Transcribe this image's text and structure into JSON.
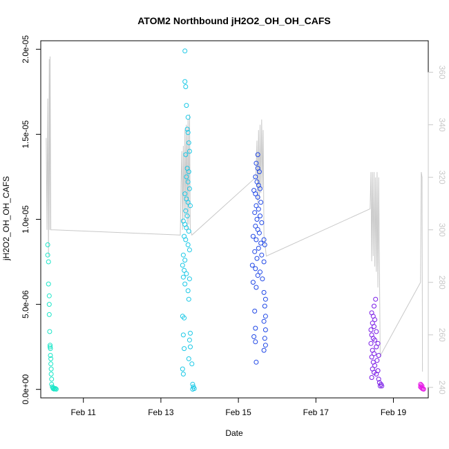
{
  "chart_data": {
    "type": "scatter",
    "title": "ATOM2 Northbound jH2O2_OH_OH_CAFS",
    "xlabel": "Date",
    "ylabel": "jH2O2_OH_OH_CAFS",
    "x_tick_labels": [
      "Feb 11",
      "Feb 13",
      "Feb 15",
      "Feb 17",
      "Feb 19"
    ],
    "x_tick_values_day": [
      11,
      13,
      15,
      17,
      19
    ],
    "xlim_day": [
      9.9,
      19.9
    ],
    "y_tick_labels": [
      "0.0e+00",
      "5.0e-06",
      "1.0e-05",
      "1.5e-05",
      "2.0e-05"
    ],
    "y_tick_values": [
      0,
      5e-06,
      1e-05,
      1.5e-05,
      2e-05
    ],
    "ylim": [
      -5e-07,
      2.05e-05
    ],
    "right_axis": {
      "tick_labels": [
        "240",
        "260",
        "280",
        "300",
        "320",
        "340",
        "360"
      ],
      "tick_values": [
        240,
        260,
        280,
        300,
        320,
        340,
        360
      ],
      "lim": [
        236,
        372
      ],
      "color": "#c8c8c8"
    },
    "grid": false,
    "colors": {
      "flight1": "#19e6c8",
      "flight2": "#19c8e6",
      "flight3": "#1e46e6",
      "flight4": "#7819e6",
      "flight5": "#e619e6",
      "line": "#c8c8c8"
    },
    "series": [
      {
        "color_key": "flight1",
        "points": [
          [
            10.08,
            8.5e-06
          ],
          [
            10.08,
            7.9e-06
          ],
          [
            10.1,
            7.5e-06
          ],
          [
            10.1,
            6.2e-06
          ],
          [
            10.12,
            5.5e-06
          ],
          [
            10.12,
            5e-06
          ],
          [
            10.12,
            4.4e-06
          ],
          [
            10.13,
            3.4e-06
          ],
          [
            10.14,
            2.6e-06
          ],
          [
            10.14,
            2.5e-06
          ],
          [
            10.15,
            2.4e-06
          ],
          [
            10.15,
            2e-06
          ],
          [
            10.16,
            1.8e-06
          ],
          [
            10.16,
            1.5e-06
          ],
          [
            10.17,
            1.2e-06
          ],
          [
            10.17,
            9e-07
          ],
          [
            10.18,
            6e-07
          ],
          [
            10.18,
            3e-07
          ],
          [
            10.2,
            1.5e-07
          ],
          [
            10.22,
            5e-08
          ],
          [
            10.24,
            2e-08
          ],
          [
            10.26,
            3e-08
          ],
          [
            10.3,
            1e-08
          ],
          [
            10.22,
            1e-07
          ],
          [
            10.28,
            5e-08
          ]
        ]
      },
      {
        "color_key": "flight2",
        "points": [
          [
            13.62,
            1.99e-05
          ],
          [
            13.62,
            1.81e-05
          ],
          [
            13.64,
            1.78e-05
          ],
          [
            13.66,
            1.67e-05
          ],
          [
            13.7,
            1.6e-05
          ],
          [
            13.68,
            1.53e-05
          ],
          [
            13.7,
            1.51e-05
          ],
          [
            13.72,
            1.45e-05
          ],
          [
            13.74,
            1.4e-05
          ],
          [
            13.64,
            1.38e-05
          ],
          [
            13.68,
            1.3e-05
          ],
          [
            13.72,
            1.28e-05
          ],
          [
            13.66,
            1.25e-05
          ],
          [
            13.7,
            1.22e-05
          ],
          [
            13.74,
            1.18e-05
          ],
          [
            13.62,
            1.15e-05
          ],
          [
            13.66,
            1.12e-05
          ],
          [
            13.7,
            1.1e-05
          ],
          [
            13.76,
            1.08e-05
          ],
          [
            13.64,
            1.05e-05
          ],
          [
            13.68,
            1.02e-05
          ],
          [
            13.58,
            9.9e-06
          ],
          [
            13.62,
            9.7e-06
          ],
          [
            13.66,
            9.5e-06
          ],
          [
            13.72,
            9.3e-06
          ],
          [
            13.6,
            9e-06
          ],
          [
            13.64,
            8.8e-06
          ],
          [
            13.7,
            8.5e-06
          ],
          [
            13.74,
            8.2e-06
          ],
          [
            13.58,
            7.9e-06
          ],
          [
            13.62,
            7.6e-06
          ],
          [
            13.56,
            7.3e-06
          ],
          [
            13.6,
            7e-06
          ],
          [
            13.66,
            6.8e-06
          ],
          [
            13.58,
            6.6e-06
          ],
          [
            13.74,
            6.5e-06
          ],
          [
            13.62,
            6.2e-06
          ],
          [
            13.7,
            5.8e-06
          ],
          [
            13.72,
            5.3e-06
          ],
          [
            13.56,
            4.3e-06
          ],
          [
            13.6,
            4.2e-06
          ],
          [
            13.76,
            3.3e-06
          ],
          [
            13.58,
            3.2e-06
          ],
          [
            13.74,
            2.9e-06
          ],
          [
            13.6,
            2.4e-06
          ],
          [
            13.76,
            2.5e-06
          ],
          [
            13.72,
            1.8e-06
          ],
          [
            13.56,
            1.2e-06
          ],
          [
            13.58,
            9e-07
          ],
          [
            13.8,
            1.5e-06
          ],
          [
            13.82,
            3e-07
          ],
          [
            13.84,
            1.5e-07
          ],
          [
            13.86,
            5e-08
          ],
          [
            13.82,
            1e-08
          ]
        ]
      },
      {
        "color_key": "flight3",
        "points": [
          [
            15.5,
            1.38e-05
          ],
          [
            15.46,
            1.33e-05
          ],
          [
            15.5,
            1.3e-05
          ],
          [
            15.54,
            1.28e-05
          ],
          [
            15.44,
            1.25e-05
          ],
          [
            15.48,
            1.22e-05
          ],
          [
            15.52,
            1.2e-05
          ],
          [
            15.56,
            1.18e-05
          ],
          [
            15.4,
            1.17e-05
          ],
          [
            15.44,
            1.15e-05
          ],
          [
            15.5,
            1.13e-05
          ],
          [
            15.58,
            1.1e-05
          ],
          [
            15.46,
            1.08e-05
          ],
          [
            15.52,
            1.06e-05
          ],
          [
            15.42,
            1.04e-05
          ],
          [
            15.56,
            1.02e-05
          ],
          [
            15.48,
            1e-05
          ],
          [
            15.6,
            9.8e-06
          ],
          [
            15.44,
            9.6e-06
          ],
          [
            15.5,
            9.4e-06
          ],
          [
            15.54,
            9.2e-06
          ],
          [
            15.38,
            9e-06
          ],
          [
            15.46,
            8.8e-06
          ],
          [
            15.58,
            8.6e-06
          ],
          [
            15.66,
            8.8e-06
          ],
          [
            15.68,
            8.5e-06
          ],
          [
            15.52,
            8.3e-06
          ],
          [
            15.42,
            8.1e-06
          ],
          [
            15.6,
            7.9e-06
          ],
          [
            15.48,
            7.7e-06
          ],
          [
            15.66,
            7.5e-06
          ],
          [
            15.36,
            7.3e-06
          ],
          [
            15.44,
            7.1e-06
          ],
          [
            15.56,
            6.9e-06
          ],
          [
            15.5,
            6.7e-06
          ],
          [
            15.62,
            6.5e-06
          ],
          [
            15.38,
            6.3e-06
          ],
          [
            15.46,
            6e-06
          ],
          [
            15.66,
            5.7e-06
          ],
          [
            15.7,
            5.3e-06
          ],
          [
            15.68,
            4.9e-06
          ],
          [
            15.42,
            4.6e-06
          ],
          [
            15.7,
            4.3e-06
          ],
          [
            15.66,
            4e-06
          ],
          [
            15.44,
            3.6e-06
          ],
          [
            15.7,
            3.5e-06
          ],
          [
            15.4,
            3.1e-06
          ],
          [
            15.68,
            3e-06
          ],
          [
            15.44,
            2.8e-06
          ],
          [
            15.7,
            2.6e-06
          ],
          [
            15.66,
            2.3e-06
          ],
          [
            15.46,
            1.6e-06
          ]
        ]
      },
      {
        "color_key": "flight4",
        "points": [
          [
            18.54,
            5.3e-06
          ],
          [
            18.5,
            4.9e-06
          ],
          [
            18.44,
            4.5e-06
          ],
          [
            18.48,
            4.3e-06
          ],
          [
            18.52,
            4.1e-06
          ],
          [
            18.46,
            3.9e-06
          ],
          [
            18.5,
            3.7e-06
          ],
          [
            18.42,
            3.5e-06
          ],
          [
            18.56,
            3.4e-06
          ],
          [
            18.44,
            3.2e-06
          ],
          [
            18.48,
            3e-06
          ],
          [
            18.52,
            2.9e-06
          ],
          [
            18.42,
            2.7e-06
          ],
          [
            18.56,
            2.5e-06
          ],
          [
            18.6,
            2.7e-06
          ],
          [
            18.46,
            2.3e-06
          ],
          [
            18.5,
            2.1e-06
          ],
          [
            18.62,
            2e-06
          ],
          [
            18.44,
            1.9e-06
          ],
          [
            18.58,
            1.7e-06
          ],
          [
            18.48,
            1.6e-06
          ],
          [
            18.52,
            1.4e-06
          ],
          [
            18.46,
            1.2e-06
          ],
          [
            18.6,
            1.1e-06
          ],
          [
            18.5,
            1e-06
          ],
          [
            18.56,
            9e-07
          ],
          [
            18.44,
            7e-07
          ],
          [
            18.62,
            6e-07
          ],
          [
            18.64,
            4e-07
          ],
          [
            18.68,
            3e-07
          ],
          [
            18.66,
            2e-07
          ],
          [
            18.7,
            2e-07
          ]
        ]
      },
      {
        "color_key": "flight5",
        "points": [
          [
            19.7,
            3e-07
          ],
          [
            19.72,
            2.5e-07
          ],
          [
            19.74,
            2e-07
          ],
          [
            19.7,
            1.5e-07
          ],
          [
            19.72,
            1e-07
          ],
          [
            19.74,
            6e-08
          ],
          [
            19.76,
            3e-08
          ],
          [
            19.78,
            1e-08
          ]
        ]
      }
    ],
    "right_axis_line": [
      [
        10.04,
        335
      ],
      [
        10.06,
        300
      ],
      [
        10.08,
        350
      ],
      [
        10.1,
        290
      ],
      [
        10.12,
        365
      ],
      [
        10.13,
        300
      ],
      [
        10.14,
        366
      ],
      [
        10.16,
        300
      ],
      [
        10.2,
        300
      ],
      [
        10.25,
        300
      ],
      [
        13.5,
        298
      ],
      [
        13.52,
        318
      ],
      [
        13.54,
        330
      ],
      [
        13.56,
        300
      ],
      [
        13.58,
        332
      ],
      [
        13.6,
        304
      ],
      [
        13.62,
        338
      ],
      [
        13.64,
        306
      ],
      [
        13.66,
        340
      ],
      [
        13.68,
        300
      ],
      [
        13.7,
        342
      ],
      [
        13.72,
        302
      ],
      [
        13.74,
        344
      ],
      [
        13.76,
        300
      ],
      [
        13.8,
        298
      ],
      [
        15.45,
        320
      ],
      [
        15.48,
        334
      ],
      [
        15.5,
        310
      ],
      [
        15.52,
        338
      ],
      [
        15.54,
        312
      ],
      [
        15.56,
        340
      ],
      [
        15.58,
        314
      ],
      [
        15.6,
        342
      ],
      [
        15.62,
        316
      ],
      [
        15.64,
        338
      ],
      [
        15.66,
        298
      ],
      [
        15.72,
        290
      ],
      [
        18.4,
        308
      ],
      [
        18.42,
        322
      ],
      [
        18.44,
        288
      ],
      [
        18.46,
        322
      ],
      [
        18.48,
        290
      ],
      [
        18.5,
        322
      ],
      [
        18.52,
        286
      ],
      [
        18.54,
        320
      ],
      [
        18.56,
        284
      ],
      [
        18.58,
        322
      ],
      [
        18.6,
        278
      ],
      [
        18.62,
        320
      ],
      [
        18.66,
        252
      ],
      [
        19.7,
        280
      ],
      [
        19.72,
        322
      ],
      [
        19.74,
        320
      ],
      [
        19.75,
        246
      ]
    ]
  }
}
